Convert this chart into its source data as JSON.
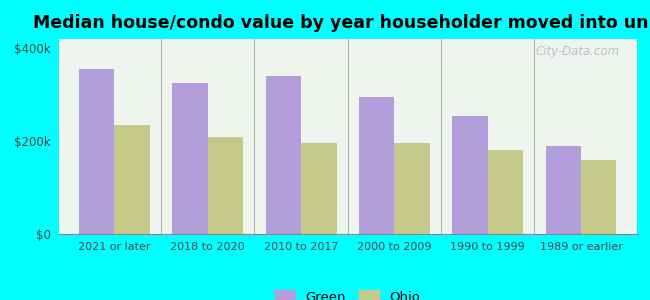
{
  "categories": [
    "2021 or later",
    "2018 to 2020",
    "2010 to 2017",
    "2000 to 2009",
    "1990 to 1999",
    "1989 or earlier"
  ],
  "green_values": [
    355000,
    325000,
    340000,
    295000,
    255000,
    190000
  ],
  "ohio_values": [
    235000,
    210000,
    195000,
    195000,
    180000,
    160000
  ],
  "green_color": "#b39ddb",
  "ohio_color": "#c5c98a",
  "title": "Median house/condo value by year householder moved into unit",
  "title_fontsize": 12.5,
  "ylim": [
    0,
    420000
  ],
  "ytick_vals": [
    0,
    200000,
    400000
  ],
  "ytick_labels": [
    "$0",
    "$200k",
    "$400k"
  ],
  "legend_labels": [
    "Green",
    "Ohio"
  ],
  "figure_bg_color": "#00ffff",
  "plot_bg_top": "#f5f5f0",
  "plot_bg_bottom": "#e8f5e8",
  "watermark_text": "City-Data.com"
}
